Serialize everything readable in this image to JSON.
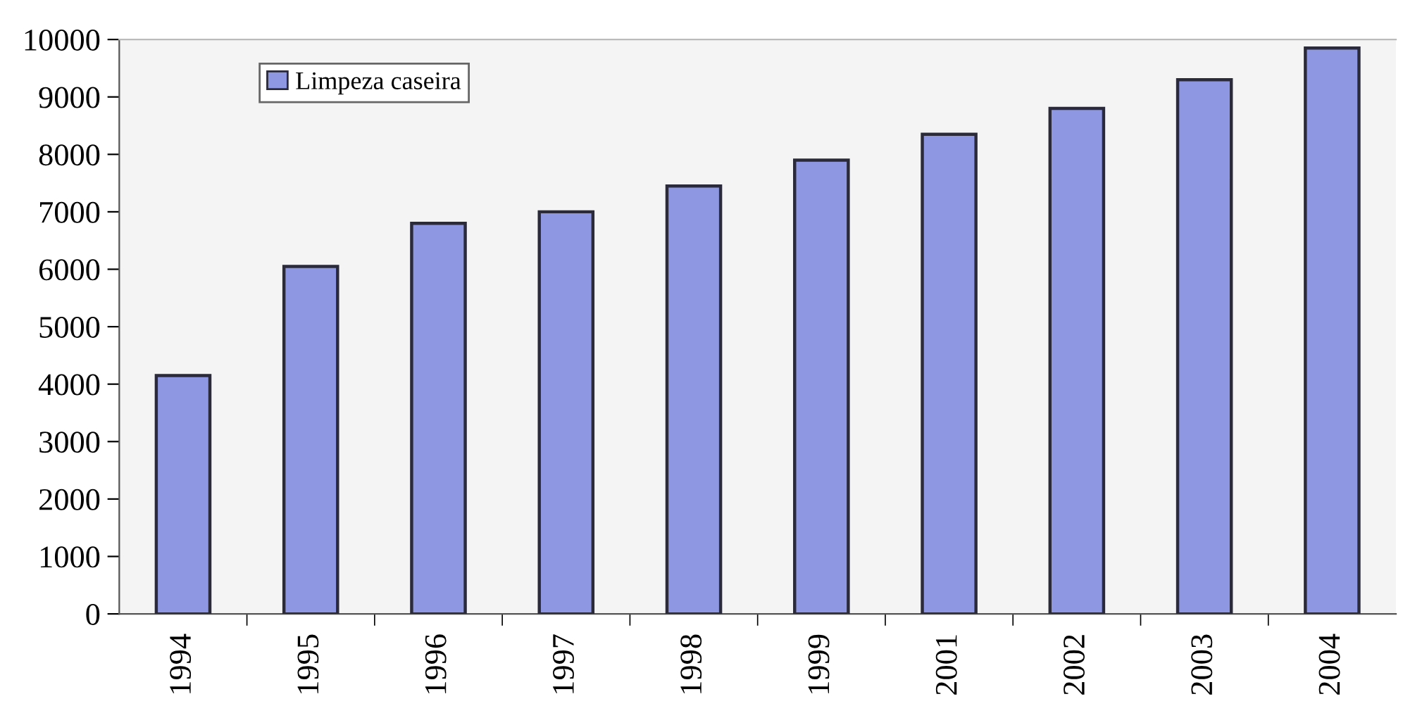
{
  "chart_data": {
    "type": "bar",
    "categories": [
      "1994",
      "1995",
      "1996",
      "1997",
      "1998",
      "1999",
      "2001",
      "2002",
      "2003",
      "2004"
    ],
    "series": [
      {
        "name": "Limpeza caseira",
        "color": "#8e97e2",
        "values": [
          4150,
          6050,
          6800,
          7000,
          7450,
          7900,
          8350,
          8800,
          9300,
          9850
        ]
      }
    ],
    "ylim": [
      0,
      10000
    ],
    "yticks": [
      0,
      1000,
      2000,
      3000,
      4000,
      5000,
      6000,
      7000,
      8000,
      9000,
      10000
    ],
    "grid": false,
    "legend": "top left"
  }
}
